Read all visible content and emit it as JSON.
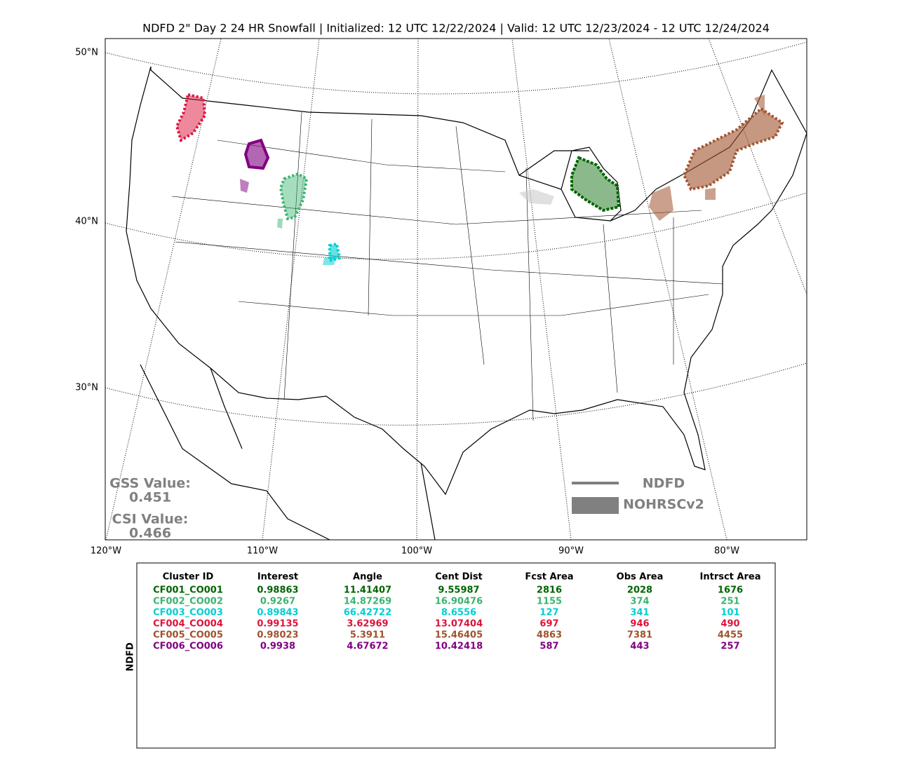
{
  "title": "NDFD 2\" Day 2 24 HR Snowfall | Initialized: 12 UTC 12/22/2024 | Valid: 12 UTC 12/23/2024 - 12 UTC 12/24/2024",
  "map": {
    "lat_labels": [
      "50°N",
      "40°N",
      "30°N"
    ],
    "lon_labels": [
      "120°W",
      "110°W",
      "100°W",
      "90°W",
      "80°W"
    ]
  },
  "scores": {
    "gss_label": "GSS Value:",
    "gss_value": 0.451,
    "csi_label": "CSI Value:",
    "csi_value": 0.466
  },
  "legend": {
    "forecast": "NDFD",
    "observed": "NOHRSCv2"
  },
  "table": {
    "side_label": "NDFD",
    "header": [
      "Cluster ID",
      "Interest",
      "Angle",
      "Cent Dist",
      "Fcst Area",
      "Obs Area",
      "Intrsct Area"
    ],
    "rows": [
      {
        "color": "#006400",
        "cells": [
          "CF001_CO001",
          0.98863,
          11.41407,
          9.55987,
          2816,
          2028,
          1676
        ]
      },
      {
        "color": "#3cb371",
        "cells": [
          "CF002_CO002",
          0.9267,
          14.87269,
          16.90476,
          1155,
          374,
          251
        ]
      },
      {
        "color": "#00ced1",
        "cells": [
          "CF003_CO003",
          0.89843,
          66.42722,
          8.6556,
          127,
          341,
          101
        ]
      },
      {
        "color": "#dc143c",
        "cells": [
          "CF004_CO004",
          0.99135,
          3.62969,
          13.07404,
          697,
          946,
          490
        ]
      },
      {
        "color": "#a0522d",
        "cells": [
          "CF005_CO005",
          0.98023,
          5.3911,
          15.46405,
          4863,
          7381,
          4455
        ]
      },
      {
        "color": "#800080",
        "cells": [
          "CF006_CO006",
          0.9938,
          4.67672,
          10.42418,
          587,
          443,
          257
        ]
      }
    ]
  }
}
